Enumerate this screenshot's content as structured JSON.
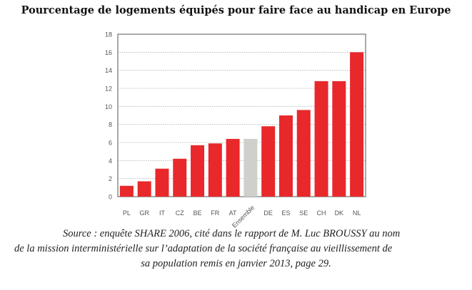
{
  "chart_data": {
    "type": "bar",
    "title": "Pourcentage de logements équipés pour faire face au handicap en Europe",
    "categories": [
      "PL",
      "GR",
      "IT",
      "CZ",
      "BE",
      "FR",
      "AT",
      "Ensemble",
      "DE",
      "ES",
      "SE",
      "CH",
      "DK",
      "NL"
    ],
    "values": [
      1.2,
      1.7,
      3.1,
      4.2,
      5.7,
      5.9,
      6.4,
      6.4,
      7.8,
      9.0,
      9.6,
      12.8,
      12.8,
      16.0
    ],
    "highlight_category": "Ensemble",
    "ylim": [
      0,
      18
    ],
    "yticks": [
      0,
      2,
      4,
      6,
      8,
      10,
      12,
      14,
      16,
      18
    ],
    "grid": true,
    "xlabel": "",
    "ylabel": "",
    "colors": {
      "bar": "#e8282b",
      "highlight": "#cfcfcb",
      "grid": "#b0b0b0",
      "axis": "#555555"
    }
  },
  "source": {
    "line1": "Source : enquête SHARE 2006, cité dans le rapport de M. Luc BROUSSY au nom",
    "line2": "de la mission interministérielle sur l’adaptation de la société française au vieillissement de",
    "line3": "sa population remis en janvier 2013, page 29."
  }
}
